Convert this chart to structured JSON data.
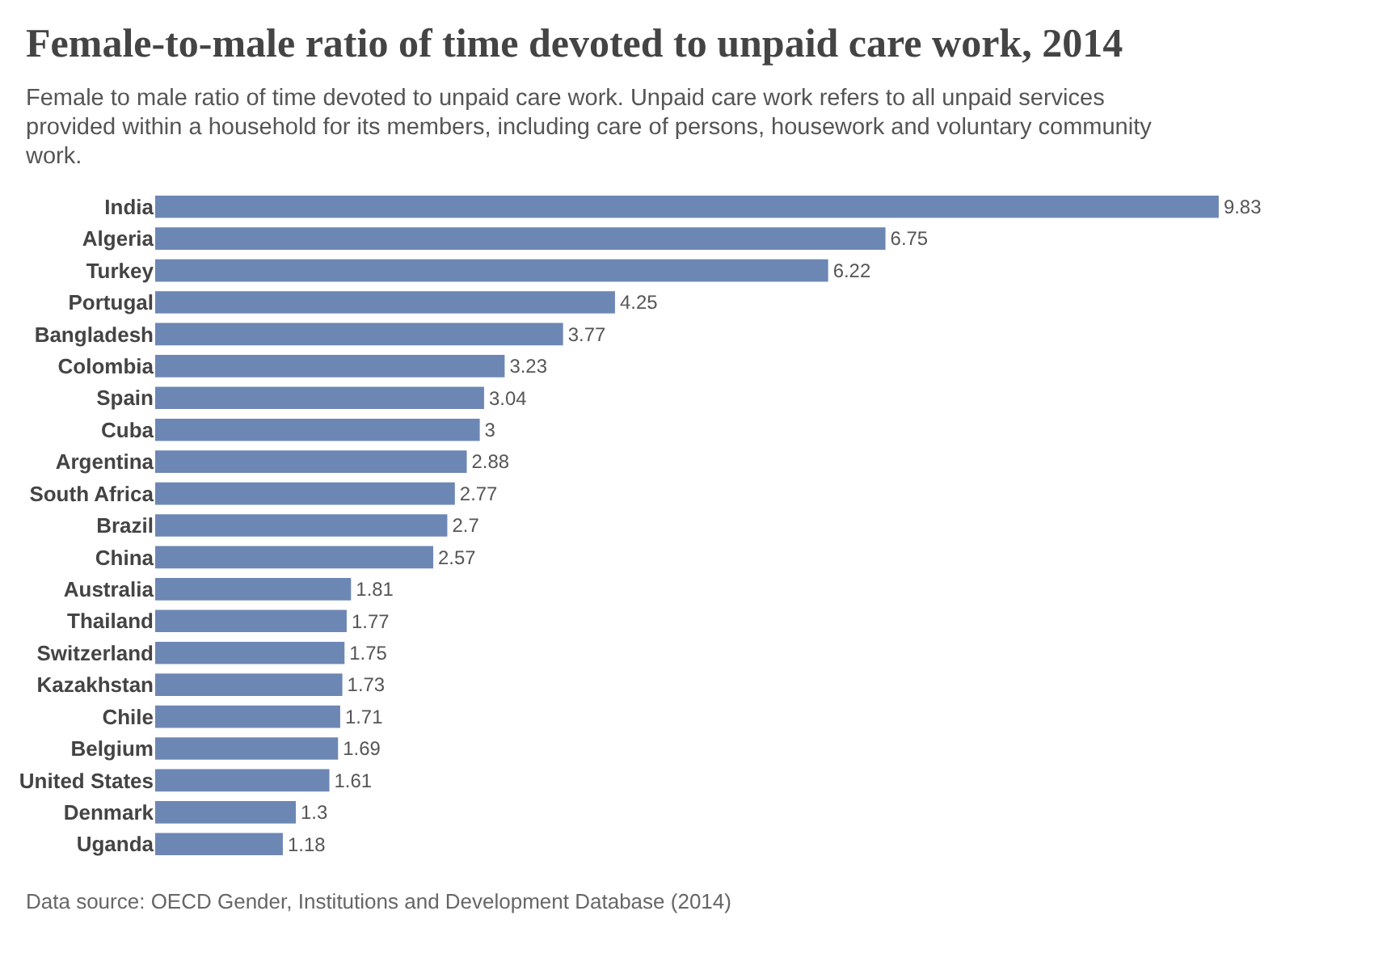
{
  "chart_data": {
    "type": "bar",
    "orientation": "horizontal",
    "title": "Female-to-male ratio of time devoted to unpaid care work, 2014",
    "subtitle": "Female to male ratio of time devoted to unpaid care work. Unpaid care work refers to all unpaid services provided within a household for its members, including care of persons, housework and voluntary community work.",
    "categories": [
      "India",
      "Algeria",
      "Turkey",
      "Portugal",
      "Bangladesh",
      "Colombia",
      "Spain",
      "Cuba",
      "Argentina",
      "South Africa",
      "Brazil",
      "China",
      "Australia",
      "Thailand",
      "Switzerland",
      "Kazakhstan",
      "Chile",
      "Belgium",
      "United States",
      "Denmark",
      "Uganda"
    ],
    "values": [
      9.83,
      6.75,
      6.22,
      4.25,
      3.77,
      3.23,
      3.04,
      3,
      2.88,
      2.77,
      2.7,
      2.57,
      1.81,
      1.77,
      1.75,
      1.73,
      1.71,
      1.69,
      1.61,
      1.3,
      1.18
    ],
    "color": "#6d87b4",
    "data_labels": true,
    "annotations": [
      "Data source: OECD Gender, Institutions and Development Database (2014)"
    ]
  }
}
